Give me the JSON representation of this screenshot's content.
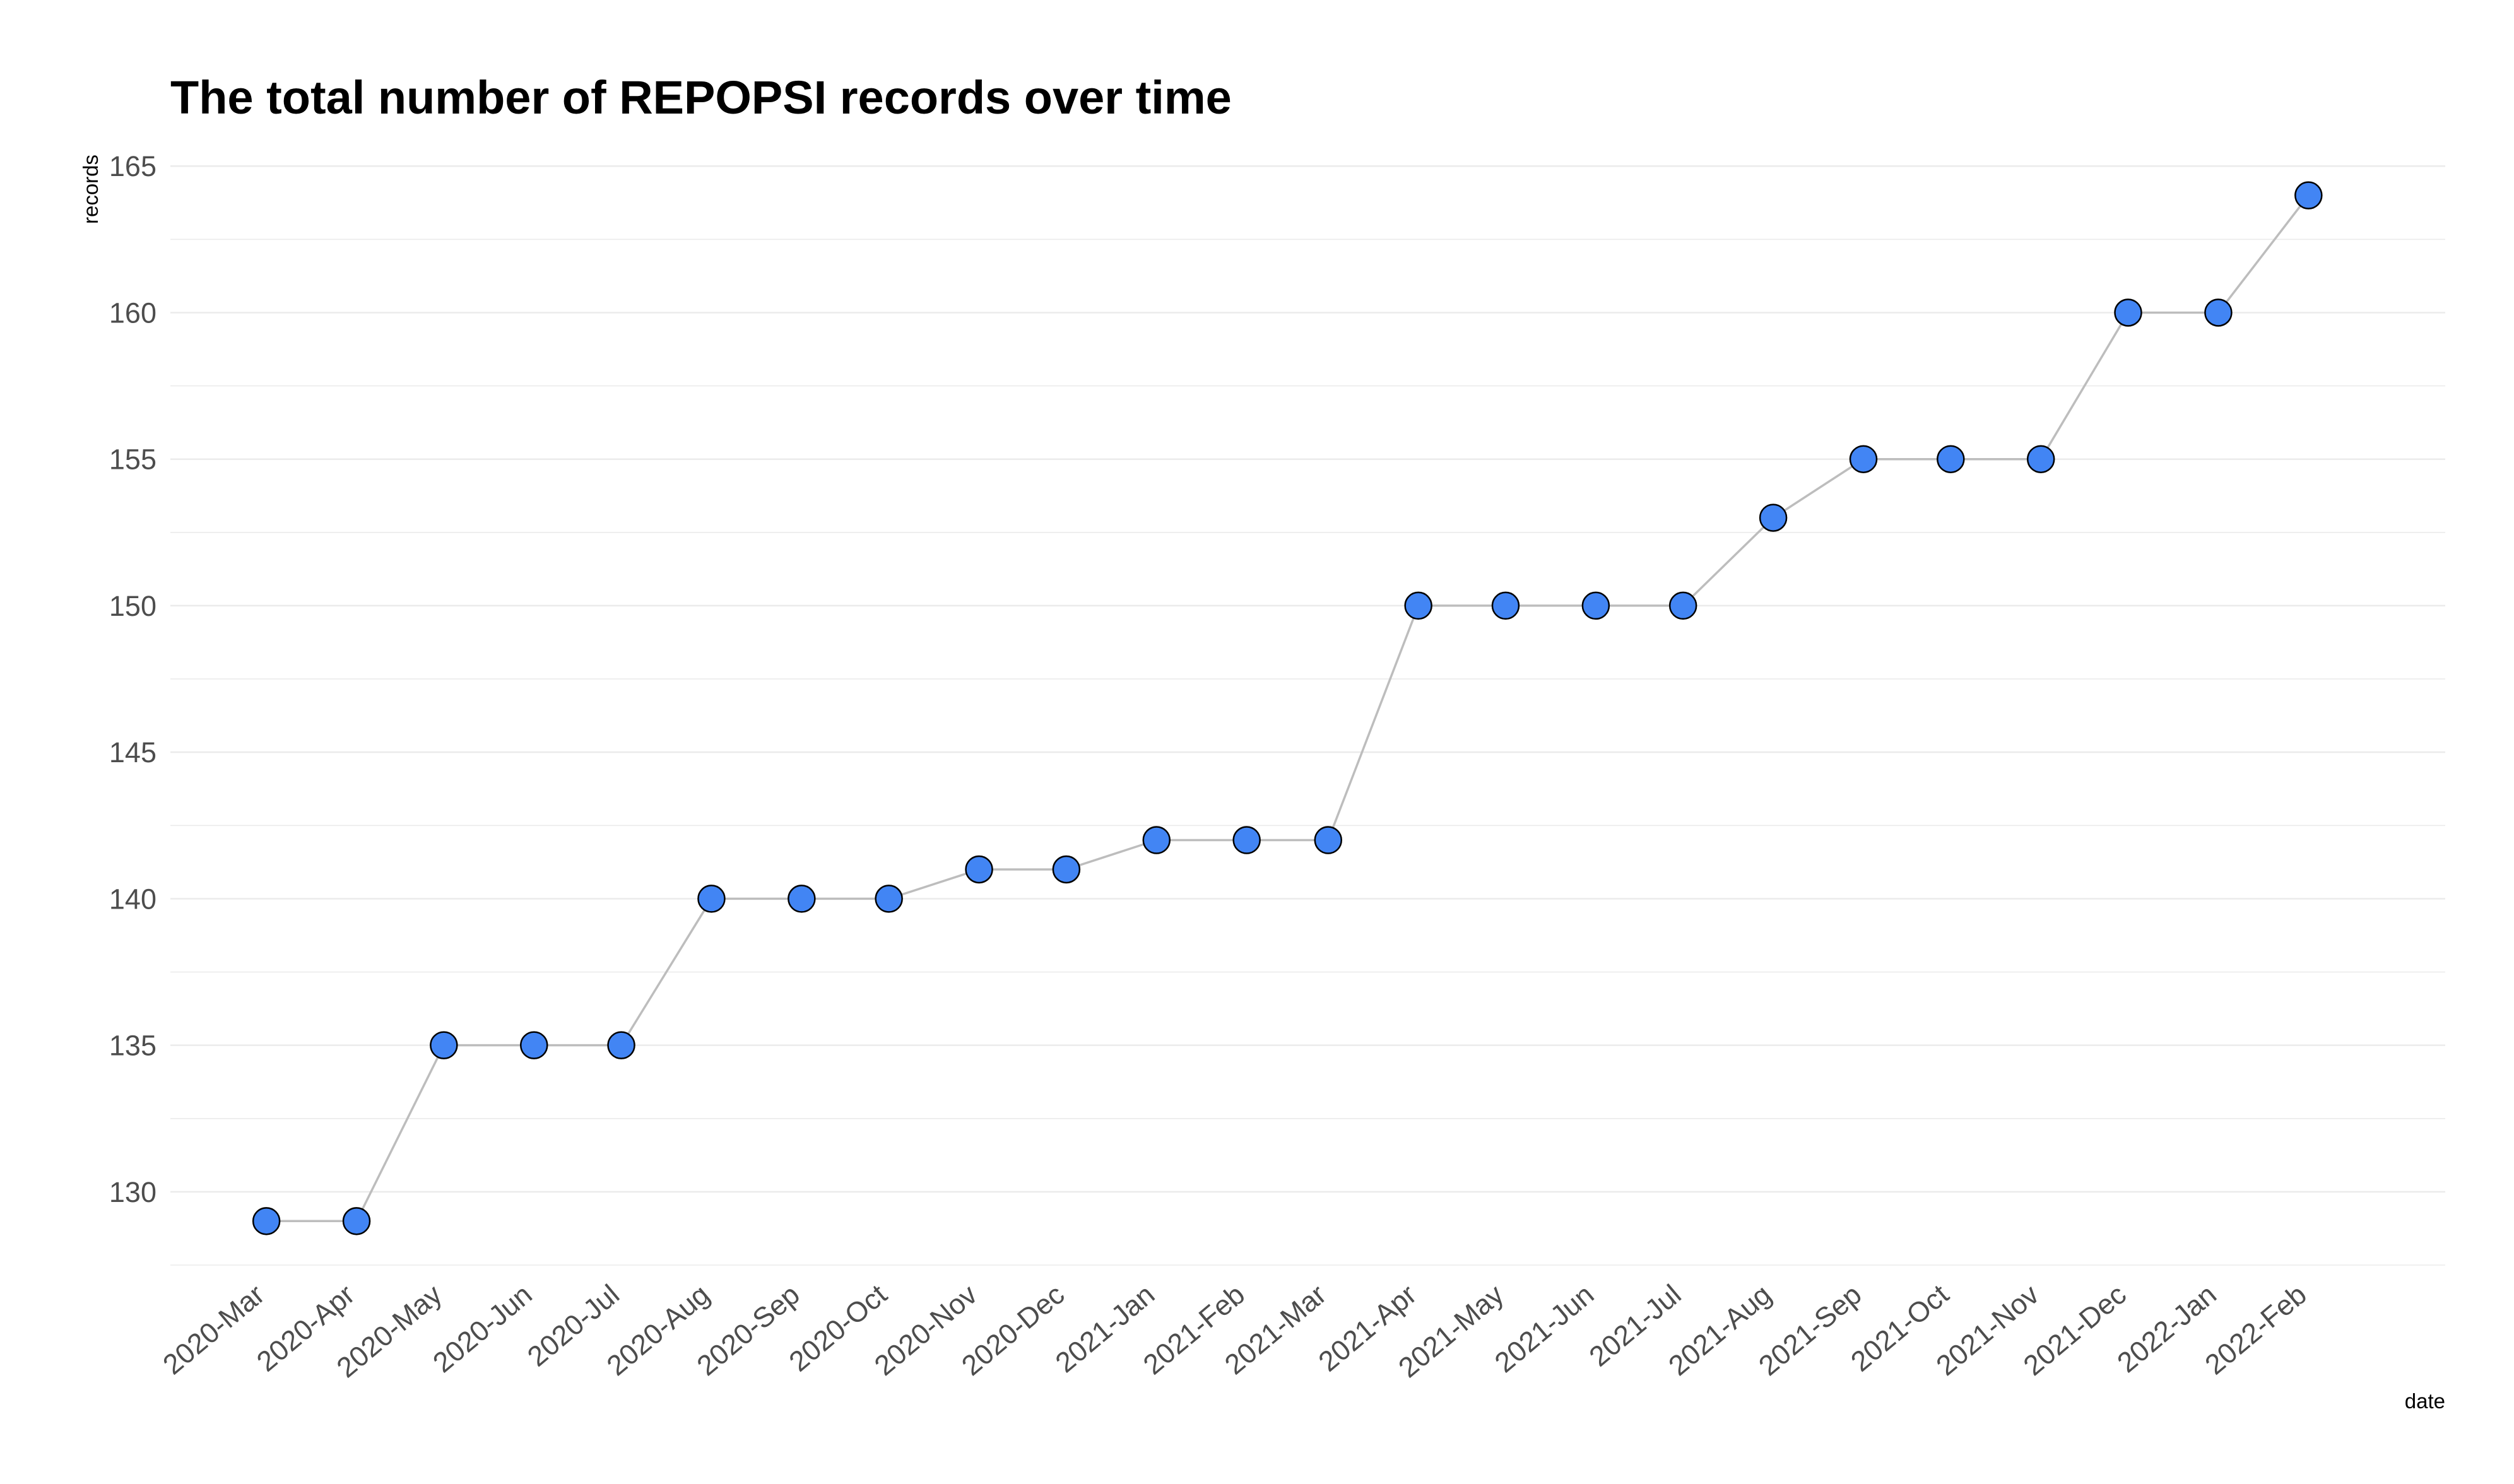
{
  "chart_data": {
    "type": "line",
    "title": "The total number of REPOPSI records over time",
    "xlabel": "date",
    "ylabel": "records",
    "categories": [
      "2020-Mar",
      "2020-Apr",
      "2020-May",
      "2020-Jun",
      "2020-Jul",
      "2020-Aug",
      "2020-Sep",
      "2020-Oct",
      "2020-Nov",
      "2020-Dec",
      "2021-Jan",
      "2021-Feb",
      "2021-Mar",
      "2021-Apr",
      "2021-May",
      "2021-Jun",
      "2021-Jul",
      "2021-Aug",
      "2021-Sep",
      "2021-Oct",
      "2021-Nov",
      "2021-Dec",
      "2022-Jan",
      "2022-Feb"
    ],
    "values": [
      129,
      129,
      135,
      135,
      135,
      140,
      140,
      140,
      141,
      141,
      142,
      142,
      142,
      150,
      150,
      150,
      150,
      153,
      155,
      155,
      155,
      160,
      160,
      164
    ],
    "x_dates": [
      "2020-03-01",
      "2020-04-01",
      "2020-05-01",
      "2020-06-01",
      "2020-07-01",
      "2020-08-01",
      "2020-09-01",
      "2020-10-01",
      "2020-11-01",
      "2020-12-01",
      "2021-01-01",
      "2021-02-01",
      "2021-03-01",
      "2021-04-01",
      "2021-05-01",
      "2021-06-01",
      "2021-07-01",
      "2021-08-01",
      "2021-09-01",
      "2021-10-01",
      "2021-11-01",
      "2021-12-01",
      "2022-01-01",
      "2022-02-01"
    ],
    "xlim": [
      "2020-01-28",
      "2022-03-20"
    ],
    "ylim": [
      127.5,
      165.5
    ],
    "yticks": [
      130,
      135,
      140,
      145,
      150,
      155,
      160,
      165
    ],
    "grid": true,
    "legend": "none",
    "colors": {
      "point_fill": "#4285f4",
      "point_stroke": "#000000",
      "line": "#bdbdbd",
      "grid": "#ebebeb"
    }
  }
}
